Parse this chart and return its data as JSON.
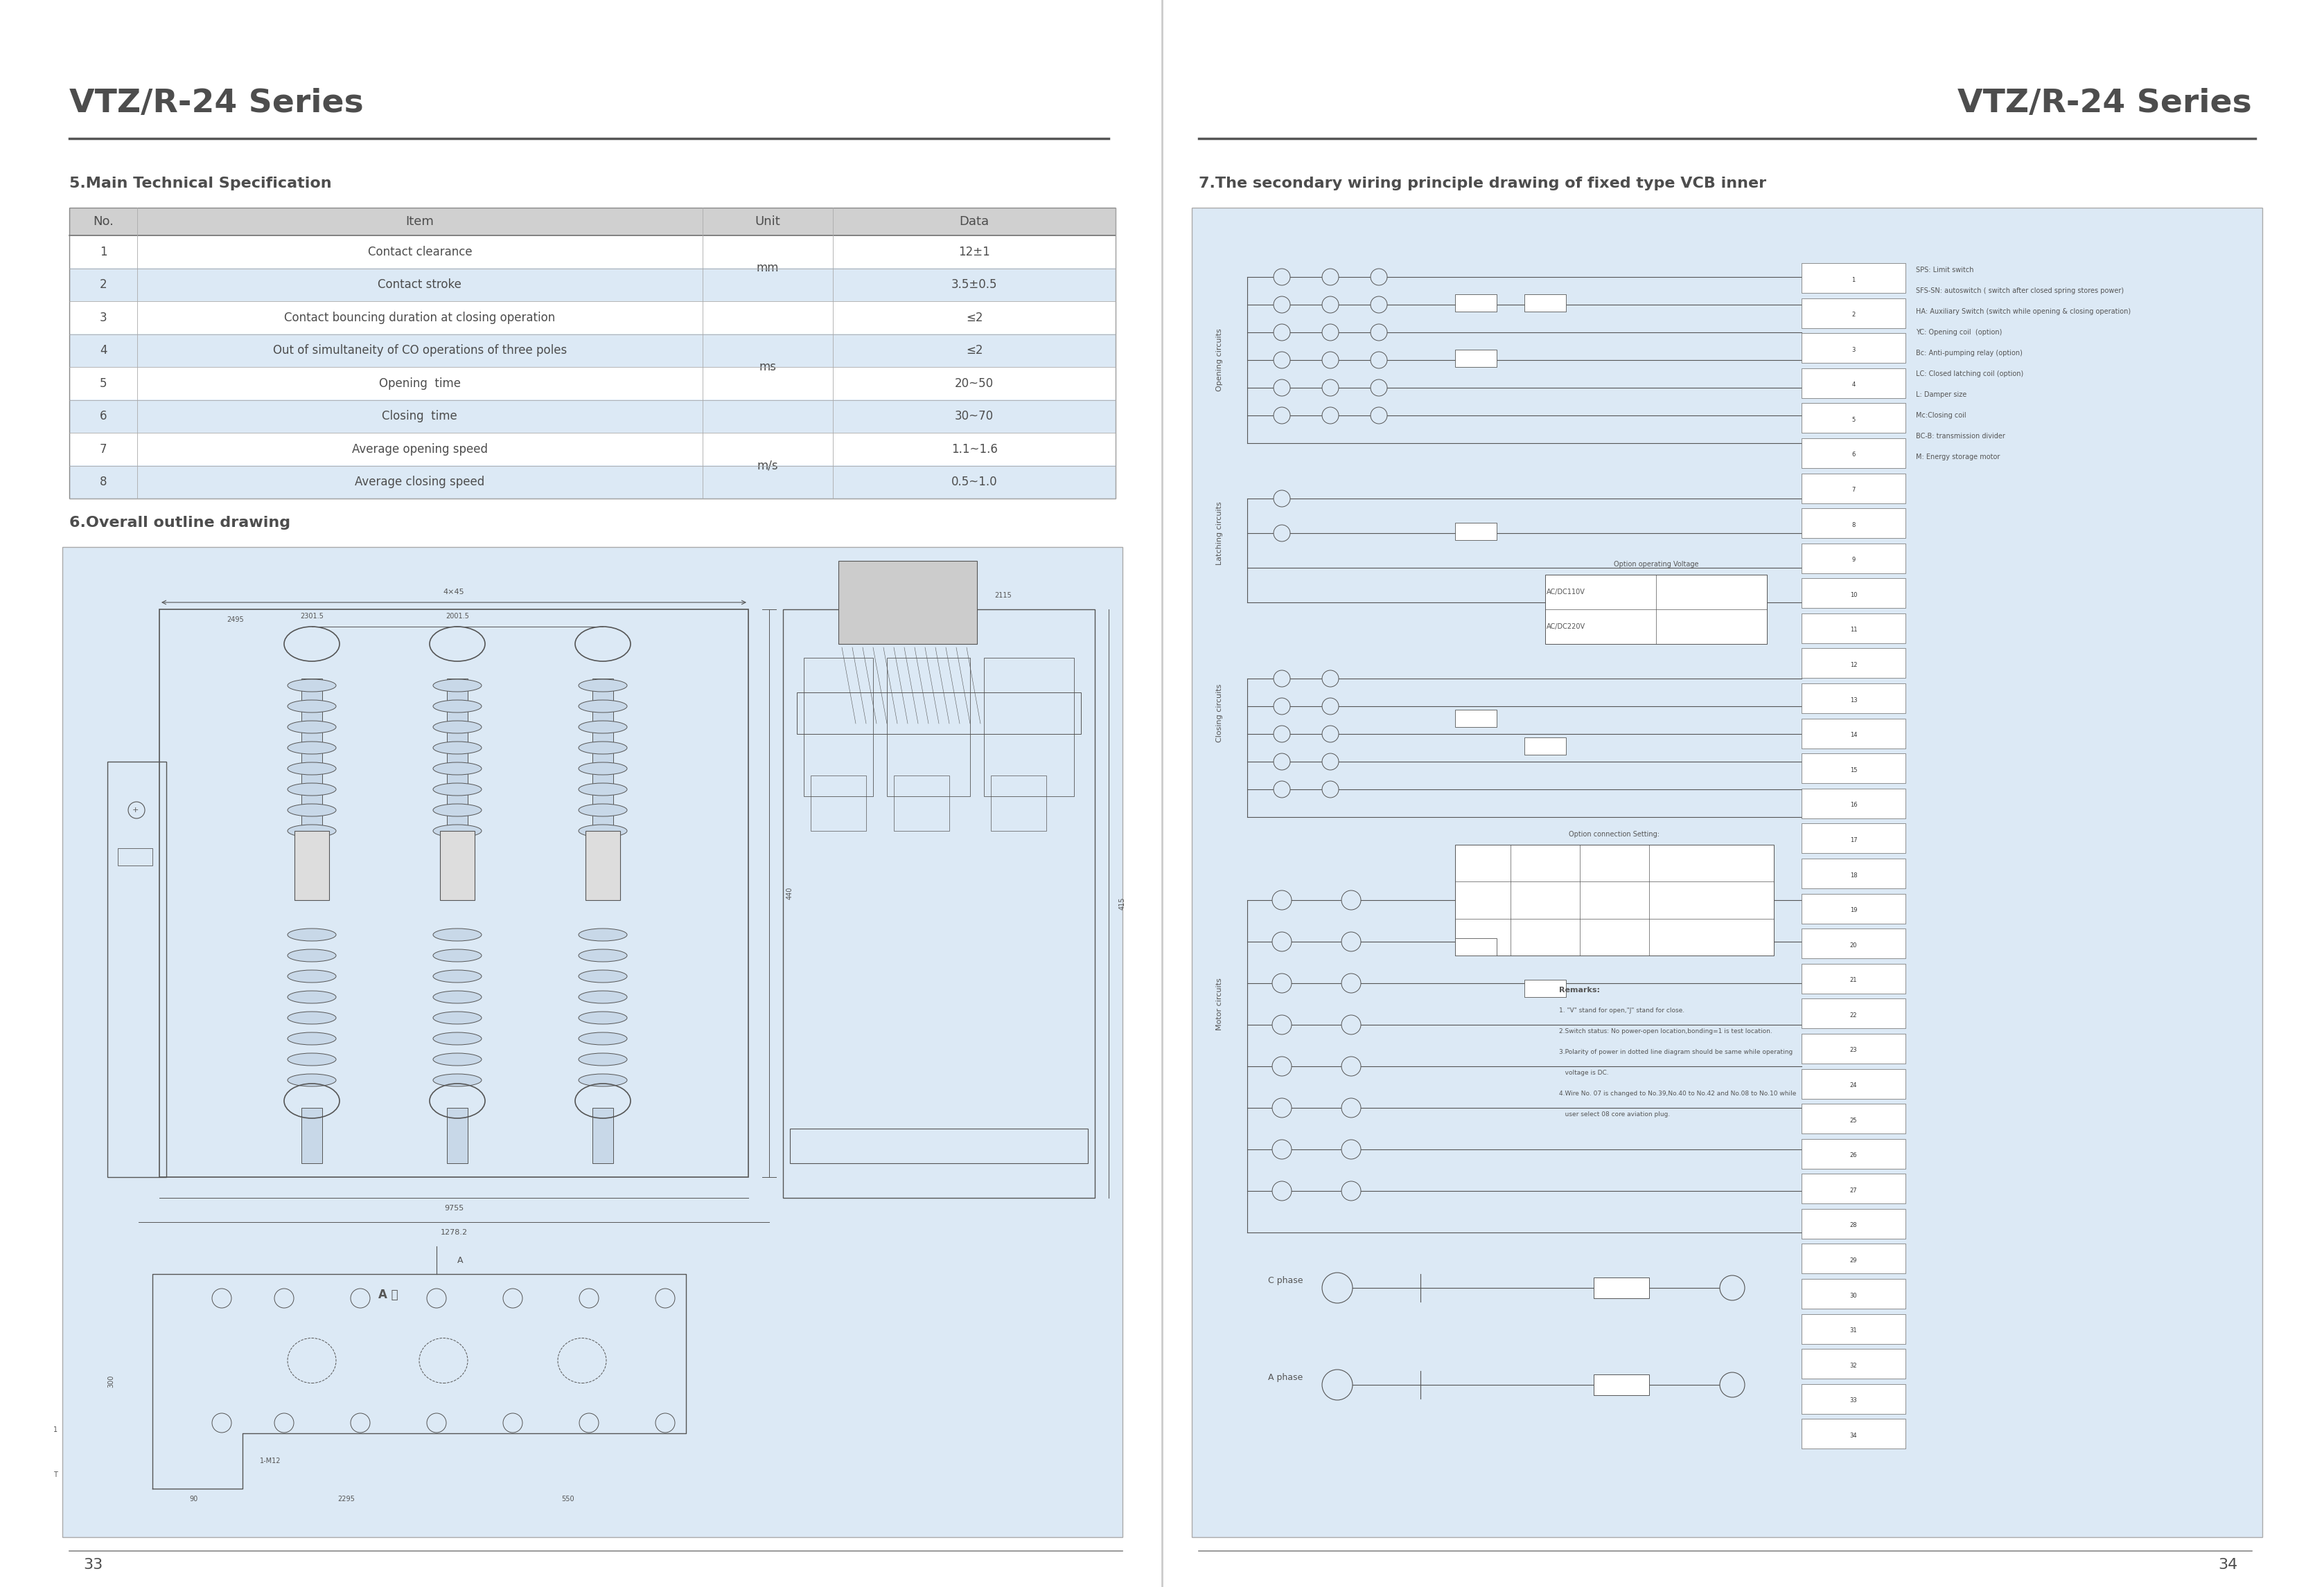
{
  "page_bg": "#ffffff",
  "content_bg": "#dce9f5",
  "header_color": "#4d4d4d",
  "title_left": "VTZ/R-24 Series",
  "title_right": "VTZ/R-24 Series",
  "section5_title": "5.Main Technical Specification",
  "section6_title": "6.Overall outline drawing",
  "section7_title": "7.The secondary wiring principle drawing of fixed type VCB inner",
  "table_header_bg": "#d0d0d0",
  "table_row_bg_even": "#dce9f5",
  "table_row_bg_odd": "#ffffff",
  "table_headers": [
    "No.",
    "Item",
    "Unit",
    "Data"
  ],
  "table_rows": [
    [
      "1",
      "Contact clearance",
      "mm",
      "12±1"
    ],
    [
      "2",
      "Contact stroke",
      "mm",
      "3.5±0.5"
    ],
    [
      "3",
      "Contact bouncing duration at closing operation",
      "ms",
      "≤2"
    ],
    [
      "4",
      "Out of simultaneity of CO operations of three poles",
      "ms",
      "≤2"
    ],
    [
      "5",
      "Opening  time",
      "ms",
      "20~50"
    ],
    [
      "6",
      "Closing  time",
      "ms",
      "30~70"
    ],
    [
      "7",
      "Average opening speed",
      "m/s",
      "1.1~1.6"
    ],
    [
      "8",
      "Average closing speed",
      "m/s",
      "0.5~1.0"
    ]
  ],
  "page_num_left": "33",
  "page_num_right": "34",
  "line_color": "#4d4d4d",
  "text_color": "#4d4d4d",
  "drawing_line": "#555555",
  "dim_text_size": 6,
  "schematic_bg": "#dce9f5"
}
